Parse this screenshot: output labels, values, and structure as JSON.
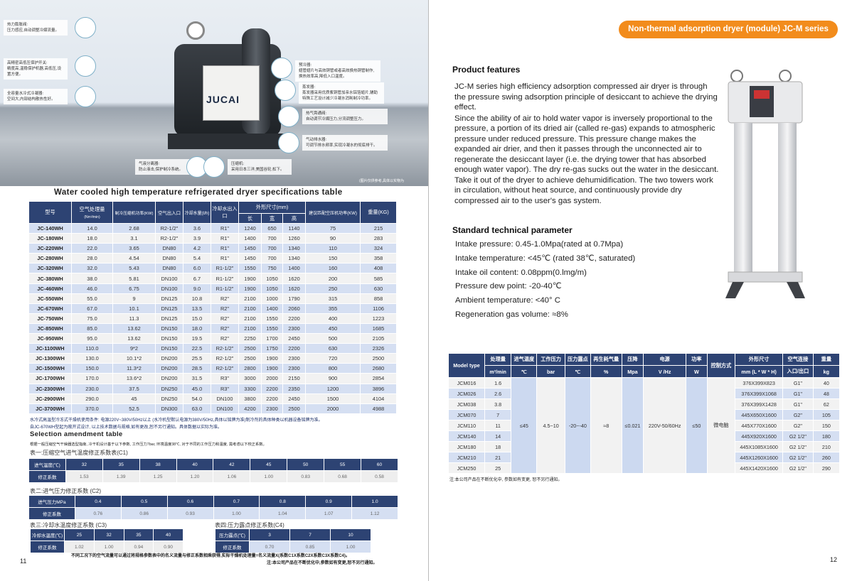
{
  "left_page": {
    "photo": {
      "brand": "JUCAI",
      "callouts": [
        {
          "title": "热力膨胀阀:",
          "text": "压力感应,自动调整冷媒流量。"
        },
        {
          "title": "高精密高低压保护开关:",
          "text": "精度高,温稳保护机器,高低压,设置方便。"
        },
        {
          "title": "全容量水冷式冷凝器:",
          "text": "空间大,内部结构散热性好。"
        },
        {
          "title": "气液分离器:",
          "text": "防止液击,保护制冷系统。"
        },
        {
          "title": "压缩机:",
          "text": "采用日本三洋,美国谷轮,松下。"
        },
        {
          "title": "预冷器:",
          "text": "翅管翅片与高效铜管或者高效换热铜管制作,换热效率高,降低入口温度。"
        },
        {
          "title": "蒸发器:",
          "text": "蒸发器采用优质紫铜管加亲水铝箔翅片,辅助特殊工艺设计减少冷凝水消耗制冷功率。"
        },
        {
          "title": "热气旁通阀:",
          "text": "自动调节冷媒压力,分流调整压力。"
        },
        {
          "title": "气动排水器:",
          "text": "可调节排水频率,实现冷凝水的彻底排干。"
        }
      ],
      "caption": "(图片仅供参考,具体以实物为"
    },
    "spec_title": "Water cooled high temperature refrigerated dryer specifications table",
    "spec_headers": {
      "model": "型号",
      "flow": "空气处理量",
      "flow_unit": "(Nm³/min)",
      "power": "制冷压缩机功率(KW)",
      "port": "空气出入口",
      "water": "冷却水量(t/h)",
      "water_port": "冷却水出入口",
      "dims": "外形尺寸(mm)",
      "l": "长",
      "w": "宽",
      "h": "高",
      "comp": "建议匹配空压机功率(KW)",
      "weight": "重量(KG)"
    },
    "spec_rows": [
      [
        "JC-140WH",
        "14.0",
        "2.68",
        "R2-1/2\"",
        "3.6",
        "R1\"",
        "1240",
        "650",
        "1140",
        "75",
        "215"
      ],
      [
        "JC-180WH",
        "18.0",
        "3.1",
        "R2-1/2\"",
        "3.9",
        "R1\"",
        "1400",
        "700",
        "1260",
        "90",
        "283"
      ],
      [
        "JC-220WH",
        "22.0",
        "3.65",
        "DN80",
        "4.2",
        "R1\"",
        "1450",
        "700",
        "1340",
        "110",
        "324"
      ],
      [
        "JC-280WH",
        "28.0",
        "4.54",
        "DN80",
        "5.4",
        "R1\"",
        "1450",
        "700",
        "1340",
        "150",
        "358"
      ],
      [
        "JC-320WH",
        "32.0",
        "5.43",
        "DN80",
        "6.0",
        "R1-1/2\"",
        "1550",
        "750",
        "1400",
        "160",
        "408"
      ],
      [
        "JC-380WH",
        "38.0",
        "5.81",
        "DN100",
        "6.7",
        "R1-1/2\"",
        "1900",
        "1050",
        "1620",
        "200",
        "585"
      ],
      [
        "JC-460WH",
        "46.0",
        "6.75",
        "DN100",
        "9.0",
        "R1-1/2\"",
        "1900",
        "1050",
        "1620",
        "250",
        "630"
      ],
      [
        "JC-550WH",
        "55.0",
        "9",
        "DN125",
        "10.8",
        "R2\"",
        "2100",
        "1000",
        "1790",
        "315",
        "858"
      ],
      [
        "JC-670WH",
        "67.0",
        "10.1",
        "DN125",
        "13.5",
        "R2\"",
        "2100",
        "1400",
        "2060",
        "355",
        "1106"
      ],
      [
        "JC-750WH",
        "75.0",
        "11.3",
        "DN125",
        "15.0",
        "R2\"",
        "2100",
        "1550",
        "2200",
        "400",
        "1223"
      ],
      [
        "JC-850WH",
        "85.0",
        "13.62",
        "DN150",
        "18.0",
        "R2\"",
        "2100",
        "1550",
        "2300",
        "450",
        "1685"
      ],
      [
        "JC-950WH",
        "95.0",
        "13.62",
        "DN150",
        "19.5",
        "R2\"",
        "2250",
        "1700",
        "2450",
        "500",
        "2105"
      ],
      [
        "JC-1100WH",
        "110.0",
        "9*2",
        "DN150",
        "22.5",
        "R2-1/2\"",
        "2500",
        "1750",
        "2200",
        "630",
        "2326"
      ],
      [
        "JC-1300WH",
        "130.0",
        "10.1*2",
        "DN200",
        "25.5",
        "R2-1/2\"",
        "2500",
        "1900",
        "2300",
        "720",
        "2500"
      ],
      [
        "JC-1500WH",
        "150.0",
        "11.3*2",
        "DN200",
        "28.5",
        "R2-1/2\"",
        "2800",
        "1900",
        "2300",
        "800",
        "2680"
      ],
      [
        "JC-1700WH",
        "170.0",
        "13.6*2",
        "DN200",
        "31.5",
        "R3\"",
        "3000",
        "2000",
        "2150",
        "900",
        "2854"
      ],
      [
        "JC-2300WH",
        "230.0",
        "37.5",
        "DN250",
        "45.0",
        "R3\"",
        "3300",
        "2200",
        "2350",
        "1200",
        "3896"
      ],
      [
        "JC-2900WH",
        "290.0",
        "45",
        "DN250",
        "54.0",
        "DN100",
        "3800",
        "2200",
        "2450",
        "1500",
        "4104"
      ],
      [
        "JC-3700WH",
        "370.0",
        "52.5",
        "DN300",
        "63.0",
        "DN100",
        "4200",
        "2300",
        "2500",
        "2000",
        "4988"
      ]
    ],
    "spec_notes": [
      "水冷式高温型冷冻式干燥机使用条件: 电源220V~380V/50Hz以上 (水冷机型默认电源为380V/50Hz,具体以铭牌为准)制冷剂的具体种类以机器设备铭牌为准。",
      "自JC-670WH型起为敞开式设计, 以上技术数据与规格,如有更改,恕不另行通知。具体数据以实际为准。"
    ],
    "amend_title": "Selection amendment table",
    "amend_intro": "根据一般压缩空气干燥器选型指南, 冷干机设计基于以下参数, 工作压力7bar, 环境温度38℃, 对于不同的工作压力和温度, 需考虑以下校正系数。",
    "c1": {
      "title": "表一:压缩空气进气温度修正系数表(C1)",
      "label1": "进气温度(℃)",
      "label2": "修正系数",
      "x": [
        "32",
        "35",
        "38",
        "40",
        "42",
        "45",
        "50",
        "55",
        "60"
      ],
      "y": [
        "1.53",
        "1.39",
        "1.25",
        "1.20",
        "1.06",
        "1.00",
        "0.83",
        "0.68",
        "0.58"
      ]
    },
    "c2": {
      "title": "表二:进气压力修正系数 (C2)",
      "label1": "进气压力MPa",
      "label2": "修正系数",
      "x": [
        "0.4",
        "0.5",
        "0.6",
        "0.7",
        "0.8",
        "0.9",
        "1.0"
      ],
      "y": [
        "0.76",
        "0.86",
        "0.93",
        "1.00",
        "1.04",
        "1.07",
        "1.12"
      ]
    },
    "c3": {
      "title": "表三:冷却水温度修正系数 (C3)",
      "label1": "冷却水温度(℃)",
      "label2": "修正系数",
      "x": [
        "25",
        "32",
        "35",
        "40"
      ],
      "y": [
        "1.02",
        "1.00",
        "0.94",
        "0.90"
      ]
    },
    "c4": {
      "title": "表四:压力露点修正系数(C4)",
      "label1": "压力露点(℃)",
      "label2": "修正系数",
      "x": [
        "3",
        "7",
        "10"
      ],
      "y": [
        "0.70",
        "0.85",
        "1.00"
      ]
    },
    "footer_notes": [
      "不同工况下的空气流量可以通过将规格参数表中的名义流量与修正系数相乘获得,实际干燥机处理量=名义流量X(系数C1X系数C2X系数C3X系数C4)。",
      "注:本公司产品在不断优化中,参数如有变更,恕不另行通知。"
    ],
    "page_number": "11"
  },
  "right_page": {
    "banner": "Non-thermal adsorption dryer (module) JC-M series",
    "features_title": "Product features",
    "features": [
      "JC-M series high efficiency adsorption compressed air dryer is through the pressure swing adsorption principle of desiccant to achieve the drying effect.",
      "Since the ability of air to hold water vapor is inversely proportional to the pressure, a portion of its dried air (called re-gas) expands to atmospheric pressure under reduced pressure. This pressure change makes the expanded air drier, and then it passes through the unconnected air to regenerate the desiccant layer (i.e. the drying tower that has absorbed enough water vapor). The dry re-gas sucks out the water in the desiccant. Take it out of the dryer to achieve dehumidification. The two towers work in circulation, without heat source, and continuously provide dry compressed air to the user's gas system."
    ],
    "params_title": "Standard technical parameter",
    "params": [
      "Intake pressure: 0.45-1.0Mpa(rated at 0.7Mpa)",
      "Intake temperature: <45℃ (rated 38℃, saturated)",
      "Intake oil content: 0.08ppm(0.lmg/m)",
      "Pressure dew point: -20-40℃",
      "Ambient temperature: <40° C",
      "Regeneration gas volume: ≈8%"
    ],
    "table_headers": [
      [
        "Model type",
        ""
      ],
      [
        "处理量",
        "m³/min"
      ],
      [
        "进气温度",
        "℃"
      ],
      [
        "工作压力",
        "bar"
      ],
      [
        "压力露点",
        "℃"
      ],
      [
        "再生耗气量",
        "%"
      ],
      [
        "压降",
        "Mpa"
      ],
      [
        "电源",
        "V /Hz"
      ],
      [
        "功率",
        "W"
      ],
      [
        "控制方式",
        ""
      ],
      [
        "外形尺寸",
        "mm (L * W * H)"
      ],
      [
        "空气连接",
        "入口/出口"
      ],
      [
        "重量",
        "kg"
      ]
    ],
    "shared": [
      "≤45",
      "4.5~10",
      "-20~-40",
      "≈8",
      "≤0.021",
      "220V-50/60Hz",
      "≤50",
      "微电脑"
    ],
    "rows": [
      [
        "JCM016",
        "1.6",
        "376X399X823",
        "G1\"",
        "40"
      ],
      [
        "JCM026",
        "2.6",
        "376X399X1068",
        "G1\"",
        "48"
      ],
      [
        "JCM038",
        "3.8",
        "376X399X1428",
        "G1\"",
        "62"
      ],
      [
        "JCM070",
        "7",
        "445X650X1600",
        "G2\"",
        "105"
      ],
      [
        "JCM110",
        "11",
        "445X770X1600",
        "G2\"",
        "150"
      ],
      [
        "JCM140",
        "14",
        "445X920X1600",
        "G2 1/2\"",
        "180"
      ],
      [
        "JCM180",
        "18",
        "445X1085X1600",
        "G2 1/2\"",
        "210"
      ],
      [
        "JCM210",
        "21",
        "445X1260X1600",
        "G2 1/2\"",
        "260"
      ],
      [
        "JCM250",
        "25",
        "445X1420X1600",
        "G2 1/2\"",
        "290"
      ]
    ],
    "note": "注:本公司产品在不断优化中, 参数如有变更, 恕不另行通知。",
    "page_number": "12"
  },
  "colors": {
    "navy": "#2d4373",
    "light_blue": "#d5dff2",
    "orange": "#f28c1c"
  }
}
